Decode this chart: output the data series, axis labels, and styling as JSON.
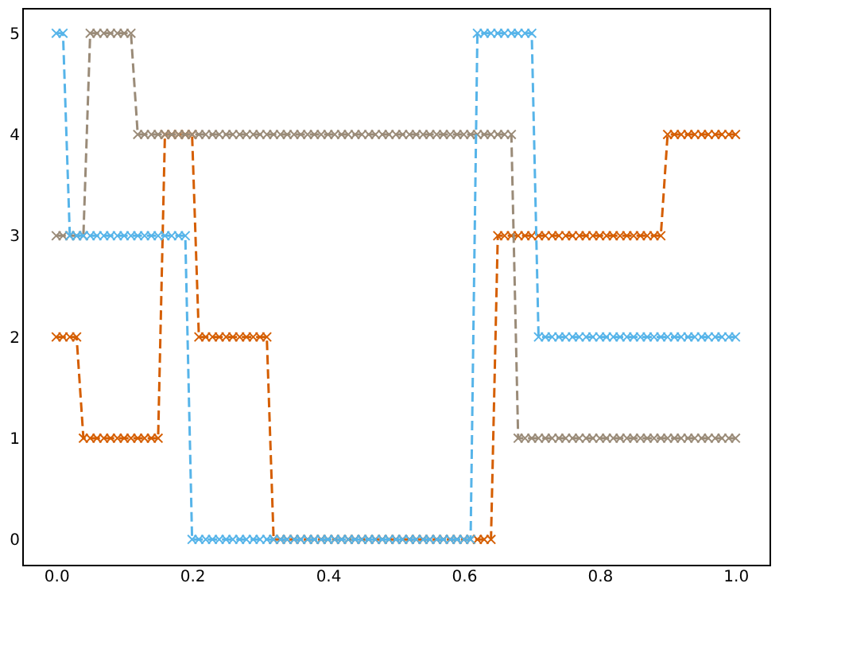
{
  "chart_data": {
    "type": "line",
    "marker": "cross",
    "line_style": "dashed",
    "x": [
      0,
      0.01,
      0.02,
      0.03,
      0.04,
      0.05,
      0.06,
      0.07,
      0.08,
      0.09,
      0.1,
      0.11,
      0.12,
      0.13,
      0.14,
      0.15,
      0.16,
      0.17,
      0.18,
      0.19,
      0.2,
      0.21,
      0.22,
      0.23,
      0.24,
      0.25,
      0.26,
      0.27,
      0.28,
      0.29,
      0.3,
      0.31,
      0.32,
      0.33,
      0.34,
      0.35,
      0.36,
      0.37,
      0.38,
      0.39,
      0.4,
      0.41,
      0.42,
      0.43,
      0.44,
      0.45,
      0.46,
      0.47,
      0.48,
      0.49,
      0.5,
      0.51,
      0.52,
      0.53,
      0.54,
      0.55,
      0.56,
      0.57,
      0.58,
      0.59,
      0.6,
      0.61,
      0.62,
      0.63,
      0.64,
      0.65,
      0.66,
      0.67,
      0.68,
      0.69,
      0.7,
      0.71,
      0.72,
      0.73,
      0.74,
      0.75,
      0.76,
      0.77,
      0.78,
      0.79,
      0.8,
      0.81,
      0.82,
      0.83,
      0.84,
      0.85,
      0.86,
      0.87,
      0.88,
      0.89,
      0.9,
      0.91,
      0.92,
      0.93,
      0.94,
      0.95,
      0.96,
      0.97,
      0.98,
      0.99,
      1
    ],
    "xlim": [
      -0.05,
      1.05
    ],
    "xticks": [
      {
        "value": 0,
        "label": "0.0"
      },
      {
        "value": 0.2,
        "label": "0.2"
      },
      {
        "value": 0.4,
        "label": "0.4"
      },
      {
        "value": 0.6,
        "label": "0.6"
      },
      {
        "value": 0.8,
        "label": "0.8"
      },
      {
        "value": 1,
        "label": "1.0"
      }
    ],
    "ylim": [
      -0.25,
      5.25
    ],
    "yticks": [
      0,
      1,
      2,
      3,
      4,
      5
    ],
    "series": [
      {
        "color": "#d55e00",
        "values": [
          2,
          2,
          2,
          2,
          1,
          1,
          1,
          1,
          1,
          1,
          1,
          1,
          1,
          1,
          1,
          1,
          4,
          4,
          4,
          4,
          4,
          2,
          2,
          2,
          2,
          2,
          2,
          2,
          2,
          2,
          2,
          2,
          0,
          0,
          0,
          0,
          0,
          0,
          0,
          0,
          0,
          0,
          0,
          0,
          0,
          0,
          0,
          0,
          0,
          0,
          0,
          0,
          0,
          0,
          0,
          0,
          0,
          0,
          0,
          0,
          0,
          0,
          0,
          0,
          0,
          3,
          3,
          3,
          3,
          3,
          3,
          3,
          3,
          3,
          3,
          3,
          3,
          3,
          3,
          3,
          3,
          3,
          3,
          3,
          3,
          3,
          3,
          3,
          3,
          3,
          4,
          4,
          4,
          4,
          4,
          4,
          4,
          4,
          4,
          4,
          4
        ]
      },
      {
        "color": "#9a8b78",
        "values": [
          3,
          3,
          3,
          3,
          3,
          5,
          5,
          5,
          5,
          5,
          5,
          5,
          4,
          4,
          4,
          4,
          4,
          4,
          4,
          4,
          4,
          4,
          4,
          4,
          4,
          4,
          4,
          4,
          4,
          4,
          4,
          4,
          4,
          4,
          4,
          4,
          4,
          4,
          4,
          4,
          4,
          4,
          4,
          4,
          4,
          4,
          4,
          4,
          4,
          4,
          4,
          4,
          4,
          4,
          4,
          4,
          4,
          4,
          4,
          4,
          4,
          4,
          4,
          4,
          4,
          4,
          4,
          4,
          1,
          1,
          1,
          1,
          1,
          1,
          1,
          1,
          1,
          1,
          1,
          1,
          1,
          1,
          1,
          1,
          1,
          1,
          1,
          1,
          1,
          1,
          1,
          1,
          1,
          1,
          1,
          1,
          1,
          1,
          1,
          1,
          1
        ]
      },
      {
        "color": "#56b4e9",
        "values": [
          5,
          5,
          3,
          3,
          3,
          3,
          3,
          3,
          3,
          3,
          3,
          3,
          3,
          3,
          3,
          3,
          3,
          3,
          3,
          3,
          0,
          0,
          0,
          0,
          0,
          0,
          0,
          0,
          0,
          0,
          0,
          0,
          0,
          0,
          0,
          0,
          0,
          0,
          0,
          0,
          0,
          0,
          0,
          0,
          0,
          0,
          0,
          0,
          0,
          0,
          0,
          0,
          0,
          0,
          0,
          0,
          0,
          0,
          0,
          0,
          0,
          0,
          5,
          5,
          5,
          5,
          5,
          5,
          5,
          5,
          5,
          2,
          2,
          2,
          2,
          2,
          2,
          2,
          2,
          2,
          2,
          2,
          2,
          2,
          2,
          2,
          2,
          2,
          2,
          2,
          2,
          2,
          2,
          2,
          2,
          2,
          2,
          2,
          2,
          2,
          2
        ]
      }
    ]
  }
}
